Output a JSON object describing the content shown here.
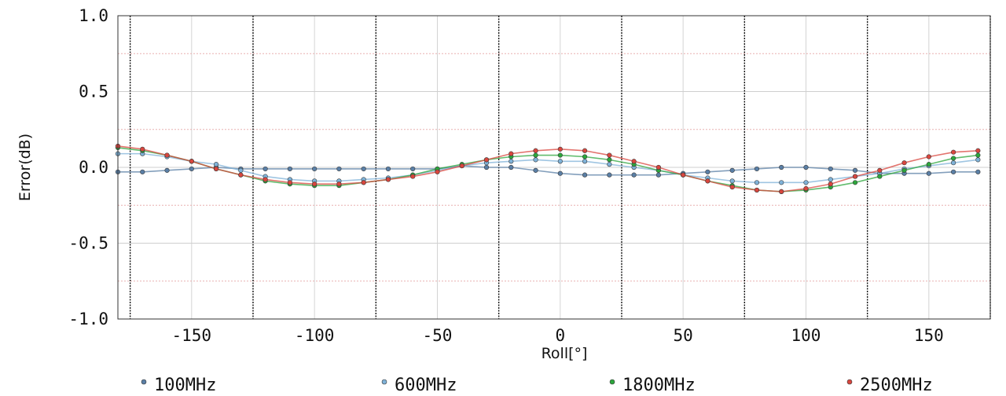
{
  "chart_data": {
    "type": "line",
    "xlabel": "Roll[°]",
    "ylabel": "Error(dB)",
    "xlim": [
      -180,
      175
    ],
    "ylim": [
      -1.0,
      1.0
    ],
    "xticks": [
      -150,
      -100,
      -50,
      0,
      50,
      100,
      150
    ],
    "yticks": [
      1.0,
      0.5,
      0.0,
      -0.5,
      -1.0
    ],
    "ytick_labels": [
      "1.0",
      "0.5",
      "0.0",
      "-0.5",
      "-1.0"
    ],
    "grid": true,
    "legend_position": "bottom",
    "x": [
      -180,
      -170,
      -160,
      -150,
      -140,
      -130,
      -120,
      -110,
      -100,
      -90,
      -80,
      -70,
      -60,
      -50,
      -40,
      -30,
      -20,
      -10,
      0,
      10,
      20,
      30,
      40,
      50,
      60,
      70,
      80,
      90,
      100,
      110,
      120,
      130,
      140,
      150,
      160,
      170
    ],
    "series": [
      {
        "name": "100MHz",
        "color": "#5a7fa6",
        "values": [
          -0.03,
          -0.03,
          -0.02,
          -0.01,
          0.0,
          -0.01,
          -0.01,
          -0.01,
          -0.01,
          -0.01,
          -0.01,
          -0.01,
          -0.01,
          -0.01,
          0.01,
          0.0,
          0.0,
          -0.02,
          -0.04,
          -0.05,
          -0.05,
          -0.05,
          -0.05,
          -0.04,
          -0.03,
          -0.02,
          -0.01,
          0.0,
          0.0,
          -0.01,
          -0.02,
          -0.04,
          -0.04,
          -0.04,
          -0.03,
          -0.03
        ]
      },
      {
        "name": "600MHz",
        "color": "#7fb2d8",
        "values": [
          0.09,
          0.09,
          0.07,
          0.04,
          0.02,
          -0.02,
          -0.06,
          -0.08,
          -0.09,
          -0.09,
          -0.08,
          -0.07,
          -0.05,
          -0.02,
          0.01,
          0.03,
          0.04,
          0.05,
          0.04,
          0.04,
          0.02,
          0.0,
          -0.02,
          -0.05,
          -0.07,
          -0.09,
          -0.1,
          -0.1,
          -0.1,
          -0.08,
          -0.06,
          -0.04,
          -0.01,
          0.01,
          0.03,
          0.05
        ]
      },
      {
        "name": "1800MHz",
        "color": "#2ca63c",
        "values": [
          0.13,
          0.11,
          0.08,
          0.04,
          -0.01,
          -0.05,
          -0.09,
          -0.11,
          -0.12,
          -0.12,
          -0.1,
          -0.08,
          -0.05,
          -0.01,
          0.02,
          0.05,
          0.07,
          0.08,
          0.08,
          0.07,
          0.05,
          0.02,
          -0.02,
          -0.05,
          -0.09,
          -0.12,
          -0.15,
          -0.16,
          -0.15,
          -0.13,
          -0.1,
          -0.06,
          -0.02,
          0.02,
          0.06,
          0.08
        ]
      },
      {
        "name": "2500MHz",
        "color": "#d9463e",
        "values": [
          0.14,
          0.12,
          0.08,
          0.04,
          -0.01,
          -0.05,
          -0.08,
          -0.1,
          -0.11,
          -0.11,
          -0.1,
          -0.08,
          -0.06,
          -0.03,
          0.01,
          0.05,
          0.09,
          0.11,
          0.12,
          0.11,
          0.08,
          0.04,
          0.0,
          -0.05,
          -0.09,
          -0.13,
          -0.15,
          -0.16,
          -0.14,
          -0.11,
          -0.06,
          -0.02,
          0.03,
          0.07,
          0.1,
          0.11
        ]
      }
    ]
  }
}
